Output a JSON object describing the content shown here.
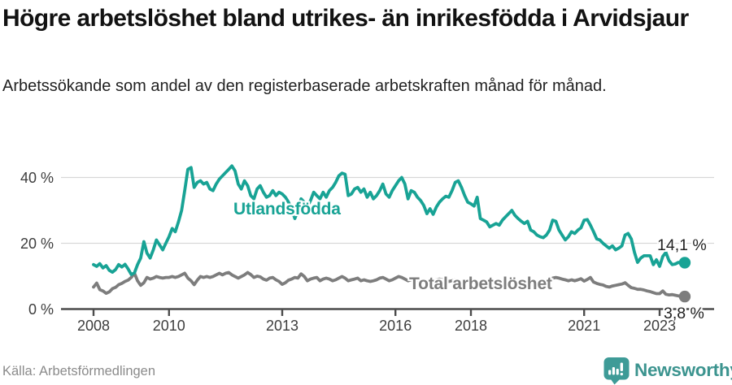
{
  "header": {
    "title": "Högre arbetslöshet bland utrikes- än inrikesfödda i Arvidsjaur",
    "subtitle": "Arbetssökande som andel av den registerbaserade arbetskraften månad för månad."
  },
  "footer": {
    "source": "Källa: Arbetsförmedlingen",
    "brand": "Newsworthy",
    "brand_color": "#3C948F"
  },
  "chart_data": {
    "type": "line",
    "title": "Högre arbetslöshet bland utrikes- än inrikesfödda i Arvidsjaur",
    "subtitle": "Arbetssökande som andel av den registerbaserade arbetskraften månad för månad.",
    "unit": "%",
    "grid": "horizontal",
    "legend_position": "inline-labels",
    "ylim": [
      0,
      46
    ],
    "x_range_years": [
      2008.0,
      2023.667
    ],
    "frequency": "monthly",
    "start_year": 2008,
    "start_month": 1,
    "y_ticks": [
      {
        "value": 0,
        "label": "0 %"
      },
      {
        "value": 20,
        "label": "20 %"
      },
      {
        "value": 40,
        "label": "40 %"
      }
    ],
    "x_ticks": [
      {
        "value": 2008,
        "label": "2008"
      },
      {
        "value": 2010,
        "label": "2010"
      },
      {
        "value": 2013,
        "label": "2013"
      },
      {
        "value": 2016,
        "label": "2016"
      },
      {
        "value": 2018,
        "label": "2018"
      },
      {
        "value": 2021,
        "label": "2021"
      },
      {
        "value": 2023,
        "label": "2023"
      }
    ],
    "series": [
      {
        "name": "Utlandsfödda",
        "color": "#18A395",
        "end_label": "14,1 %",
        "end_value": 14.1,
        "values": [
          13.5,
          13.0,
          13.8,
          12.5,
          13.2,
          11.8,
          11.2,
          12.0,
          13.5,
          12.8,
          13.6,
          12.2,
          10.5,
          11.0,
          13.5,
          15.5,
          20.5,
          17.0,
          15.5,
          18.0,
          21.0,
          19.5,
          18.0,
          20.0,
          22.0,
          24.5,
          23.5,
          26.5,
          30.0,
          36.0,
          42.5,
          43.0,
          37.0,
          38.5,
          39.0,
          38.0,
          38.5,
          36.5,
          36.0,
          38.0,
          39.5,
          40.5,
          41.5,
          42.5,
          43.5,
          42.0,
          38.0,
          36.5,
          39.0,
          37.5,
          34.5,
          33.5,
          36.5,
          37.5,
          35.5,
          34.0,
          34.5,
          36.0,
          34.5,
          35.5,
          35.0,
          34.0,
          32.5,
          30.5,
          27.5,
          30.0,
          33.5,
          32.5,
          31.0,
          33.0,
          35.5,
          34.5,
          33.5,
          35.5,
          34.0,
          36.0,
          37.0,
          38.5,
          40.5,
          41.3,
          41.0,
          34.5,
          35.0,
          36.5,
          37.0,
          35.5,
          36.5,
          34.0,
          35.5,
          33.5,
          34.5,
          36.0,
          38.0,
          35.0,
          34.0,
          36.0,
          37.5,
          39.0,
          40.0,
          38.0,
          33.5,
          36.0,
          35.5,
          34.0,
          33.0,
          31.5,
          29.0,
          30.5,
          28.8,
          31.0,
          32.5,
          33.5,
          34.3,
          34.0,
          36.0,
          38.5,
          39.0,
          37.0,
          34.5,
          32.5,
          32.0,
          31.3,
          34.0,
          27.5,
          27.0,
          26.5,
          25.0,
          25.5,
          26.0,
          25.5,
          27.0,
          28.0,
          29.0,
          30.0,
          28.5,
          27.5,
          26.7,
          26.0,
          26.7,
          24.0,
          23.5,
          22.5,
          22.0,
          21.7,
          22.5,
          24.0,
          27.0,
          26.7,
          24.0,
          22.5,
          21.0,
          22.0,
          23.5,
          23.0,
          24.0,
          24.7,
          27.0,
          27.2,
          25.5,
          23.5,
          21.3,
          21.0,
          20.0,
          19.2,
          18.5,
          19.2,
          18.0,
          18.5,
          19.2,
          22.5,
          23.0,
          21.3,
          17.2,
          14.2,
          15.5,
          16.2,
          16.2,
          16.2,
          13.5,
          15.0,
          13.0,
          16.0,
          17.2,
          14.7,
          13.5,
          13.7,
          14.2,
          13.8,
          14.1
        ]
      },
      {
        "name": "Total arbetslöshet",
        "color": "#7D7D7D",
        "end_label": "3,8 %",
        "end_value": 3.8,
        "values": [
          6.7,
          7.9,
          5.9,
          5.5,
          4.8,
          5.2,
          6.2,
          6.6,
          7.4,
          7.8,
          8.4,
          8.8,
          9.6,
          10.9,
          8.6,
          7.2,
          8.0,
          9.6,
          9.1,
          9.4,
          9.9,
          9.6,
          9.4,
          9.6,
          9.6,
          9.9,
          9.6,
          9.9,
          10.4,
          10.9,
          9.4,
          8.6,
          7.4,
          8.8,
          9.9,
          9.6,
          9.9,
          9.6,
          9.9,
          10.4,
          10.9,
          10.4,
          10.9,
          11.1,
          10.4,
          9.9,
          9.4,
          9.9,
          10.4,
          11.1,
          10.5,
          9.6,
          10.0,
          9.8,
          9.1,
          8.8,
          9.4,
          9.6,
          8.9,
          8.4,
          7.5,
          8.0,
          8.8,
          9.1,
          9.6,
          9.4,
          10.7,
          9.9,
          8.6,
          9.1,
          9.4,
          9.6,
          8.6,
          9.1,
          9.4,
          9.1,
          8.6,
          8.9,
          9.4,
          9.9,
          9.4,
          8.6,
          8.9,
          9.1,
          9.4,
          8.6,
          8.9,
          8.6,
          8.4,
          8.6,
          8.9,
          9.4,
          9.6,
          9.1,
          8.6,
          8.9,
          9.4,
          9.9,
          9.6,
          9.1,
          8.6,
          8.9,
          8.6,
          8.4,
          8.6,
          8.9,
          8.6,
          8.4,
          8.6,
          8.9,
          9.1,
          8.9,
          8.6,
          8.4,
          8.6,
          8.9,
          8.6,
          8.4,
          8.1,
          8.4,
          8.6,
          8.4,
          8.1,
          7.9,
          7.6,
          7.9,
          8.1,
          7.9,
          7.6,
          7.9,
          8.1,
          8.4,
          8.6,
          8.4,
          8.1,
          7.9,
          8.1,
          7.9,
          7.6,
          7.4,
          7.6,
          7.9,
          8.1,
          8.4,
          8.6,
          8.9,
          9.4,
          9.6,
          9.4,
          9.1,
          8.9,
          8.6,
          8.9,
          8.6,
          8.9,
          9.2,
          8.5,
          9.0,
          9.6,
          8.2,
          7.8,
          7.5,
          7.3,
          6.9,
          6.7,
          7.0,
          7.2,
          7.4,
          7.6,
          8.0,
          7.2,
          6.5,
          6.3,
          6.0,
          6.0,
          5.8,
          5.5,
          5.3,
          5.0,
          4.7,
          4.7,
          5.5,
          4.5,
          4.3,
          4.4,
          4.2,
          4.0,
          3.9,
          3.8
        ]
      }
    ]
  }
}
